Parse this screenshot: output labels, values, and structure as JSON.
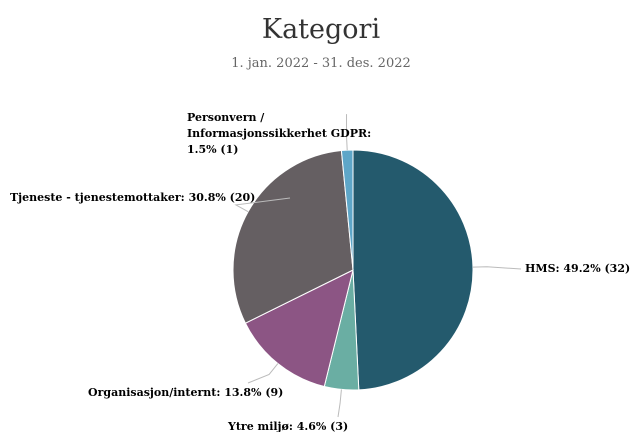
{
  "chart_data": {
    "type": "pie",
    "title": "Kategori",
    "subtitle": "1. jan. 2022 - 31. des. 2022",
    "categories": [
      "HMS",
      "Ytre miljø",
      "Organisasjon/internt",
      "Tjeneste - tjenestemottaker",
      "Personvern / Informasjonssikkerhet GDPR"
    ],
    "values": [
      32,
      3,
      9,
      20,
      1
    ],
    "value_labels": [
      "49.2% (32)",
      "4.6% (3)",
      "13.8% (9)",
      "30.8% (20)",
      "1.5% (1)"
    ],
    "colors": [
      "#245a6d",
      "#6aaea3",
      "#8c5584",
      "#655f62",
      "#5ea6c8"
    ]
  }
}
